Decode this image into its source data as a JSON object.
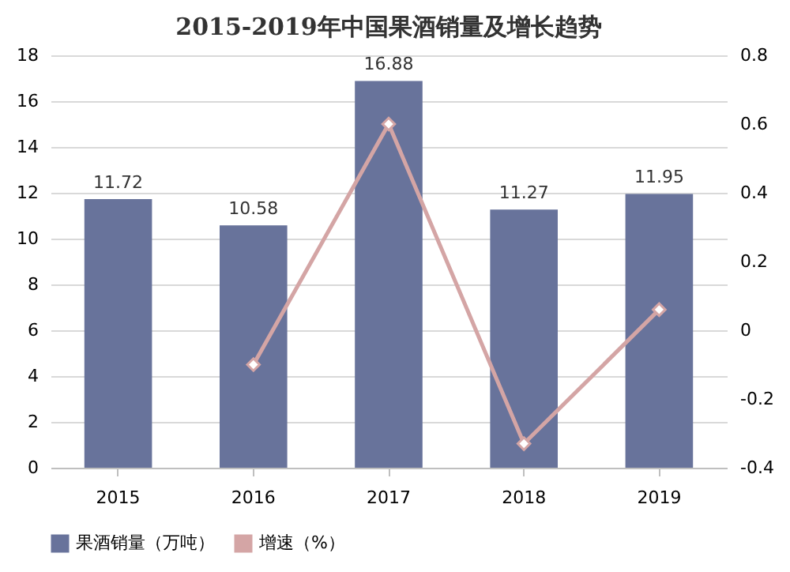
{
  "chart_data": {
    "type": "bar",
    "title": "2015-2019年中国果酒销量及增长趋势",
    "categories": [
      "2015",
      "2016",
      "2017",
      "2018",
      "2019"
    ],
    "series": [
      {
        "name": "果酒销量（万吨）",
        "color": "#68739b",
        "values": [
          11.72,
          10.58,
          16.88,
          11.27,
          11.95
        ]
      },
      {
        "name": "增速（%）",
        "type": "line",
        "axis": "y2",
        "color": "#d4a5a5",
        "marker": "diamond",
        "line_style": "solid",
        "values": [
          null,
          -0.1,
          0.6,
          -0.33,
          0.06
        ]
      }
    ],
    "ylim": [
      0,
      18
    ],
    "yticks": [
      0,
      2,
      4,
      6,
      8,
      10,
      12,
      14,
      16,
      18
    ],
    "y2lim": [
      -0.4,
      0.8
    ],
    "y2ticks": [
      -0.4,
      -0.2,
      {
        "value": 0,
        "label": "0"
      },
      0.2,
      0.4,
      0.6,
      0.8
    ],
    "value_labels": [
      "11.72",
      "10.58",
      "16.88",
      "11.27",
      "11.95"
    ],
    "grid": "y",
    "legend": "bottom"
  }
}
